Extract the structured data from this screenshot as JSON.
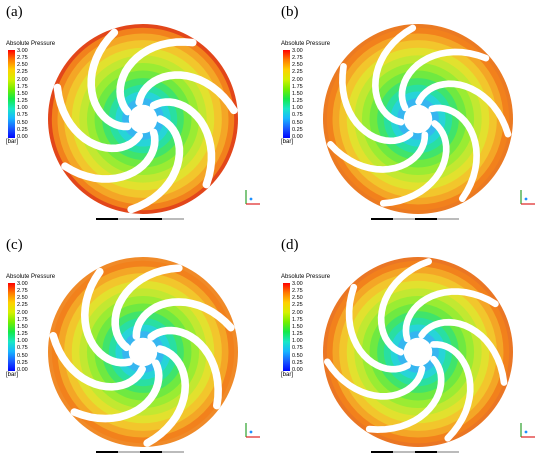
{
  "legend": {
    "title": "Absolute Pressure",
    "unit": "[bar]",
    "ticks": [
      "3.00",
      "2.75",
      "2.50",
      "2.25",
      "2.00",
      "1.75",
      "1.50",
      "1.25",
      "1.00",
      "0.75",
      "0.50",
      "0.25",
      "0.00"
    ]
  },
  "panels": [
    {
      "tag": "(a)"
    },
    {
      "tag": "(b)"
    },
    {
      "tag": "(c)"
    },
    {
      "tag": "(d)"
    }
  ]
}
